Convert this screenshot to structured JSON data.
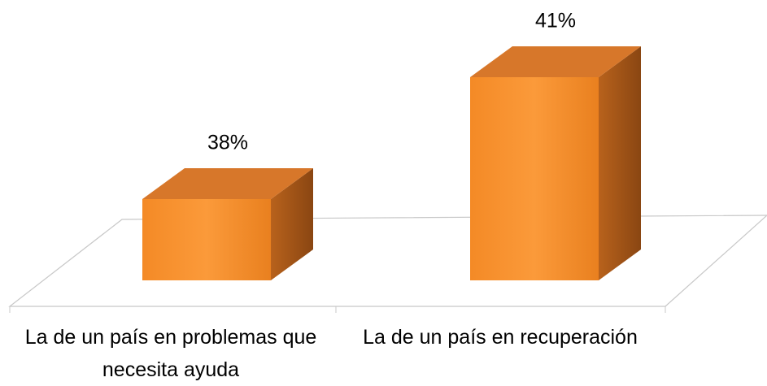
{
  "chart_data": {
    "type": "bar3d",
    "categories": [
      "La de un país en problemas que necesita ayuda",
      "La de un país en recuperación"
    ],
    "values": [
      38,
      41
    ],
    "value_labels": [
      "38%",
      "41%"
    ],
    "color": "#f7922e",
    "ylim": [
      36,
      42
    ]
  }
}
